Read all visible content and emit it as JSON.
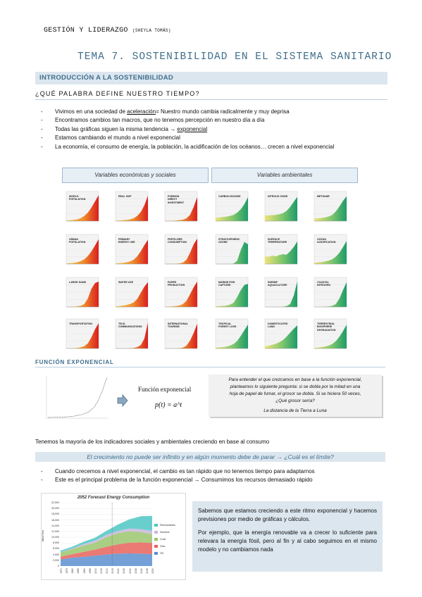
{
  "header": {
    "main": "GESTIÓN Y LIDERAZGO",
    "author": "(SHEYLA TOMÁS)"
  },
  "title": "TEMA 7. SOSTENIBILIDAD EN EL SISTEMA SANITARIO",
  "section_intro": "INTRODUCCIÓN A LA SOSTENIBILIDAD",
  "question": "¿QUÉ PALABRA DEFINE NUESTRO TIEMPO?",
  "bullets1": [
    {
      "pre": "Vivimos en una sociedad de ",
      "u": "aceleración",
      "post": "= Nuestro mundo cambia radicalmente y muy deprisa"
    },
    {
      "pre": "Encontramos cambios tan macros, que no tenemos percepción en nuestro día a día",
      "u": "",
      "post": ""
    },
    {
      "pre": "Todas las gráficas siguen la misma tendencia → ",
      "u": "exponencial",
      "post": ""
    },
    {
      "pre": "Estamos cambiando el mundo a nivel exponencial",
      "u": "",
      "post": ""
    },
    {
      "pre": "La economía, el consumo de energía, la población, la acidificación de los océanos… crecen a nivel exponencial",
      "u": "",
      "post": ""
    }
  ],
  "var_boxes": {
    "left": "Variables económicas y sociales",
    "right": "Variables ambientales"
  },
  "charts_economic": [
    {
      "label": "WORLD\nPOPULATION",
      "curve": [
        0.02,
        0.03,
        0.04,
        0.06,
        0.1,
        0.18,
        0.3,
        0.48,
        0.7,
        0.92
      ]
    },
    {
      "label": "REAL GDP",
      "curve": [
        0.01,
        0.02,
        0.03,
        0.04,
        0.06,
        0.1,
        0.18,
        0.32,
        0.56,
        0.9
      ]
    },
    {
      "label": "FOREIGN\nDIRECT\nINVESTMENT",
      "curve": [
        0.01,
        0.01,
        0.01,
        0.02,
        0.03,
        0.05,
        0.1,
        0.22,
        0.5,
        0.85
      ]
    },
    {
      "label": "URBAN\nPOPULATION",
      "curve": [
        0.02,
        0.03,
        0.04,
        0.06,
        0.1,
        0.17,
        0.28,
        0.45,
        0.66,
        0.88
      ]
    },
    {
      "label": "PRIMARY\nENERGY USE",
      "curve": [
        0.02,
        0.03,
        0.04,
        0.06,
        0.09,
        0.15,
        0.27,
        0.45,
        0.67,
        0.86
      ]
    },
    {
      "label": "FERTILIZER\nCONSUMPTION",
      "curve": [
        0.0,
        0.0,
        0.01,
        0.01,
        0.02,
        0.05,
        0.15,
        0.4,
        0.7,
        0.9
      ]
    },
    {
      "label": "LARGE DAMS",
      "curve": [
        0.0,
        0.01,
        0.01,
        0.02,
        0.04,
        0.1,
        0.3,
        0.65,
        0.85,
        0.9
      ]
    },
    {
      "label": "WATER USE",
      "curve": [
        0.02,
        0.03,
        0.05,
        0.07,
        0.1,
        0.16,
        0.28,
        0.5,
        0.72,
        0.88
      ]
    },
    {
      "label": "PAPER\nPRODUCTION",
      "curve": [
        0.0,
        0.01,
        0.02,
        0.03,
        0.05,
        0.1,
        0.22,
        0.45,
        0.7,
        0.9
      ]
    },
    {
      "label": "TRANSPORTATION",
      "curve": [
        0.0,
        0.0,
        0.01,
        0.02,
        0.04,
        0.08,
        0.18,
        0.4,
        0.68,
        0.9
      ]
    },
    {
      "label": "TELE-\nCOMMUNICATIONS",
      "curve": [
        0.0,
        0.0,
        0.0,
        0.0,
        0.01,
        0.02,
        0.05,
        0.12,
        0.35,
        0.92
      ]
    },
    {
      "label": "INTERNATIONAL\nTOURISM",
      "curve": [
        0.0,
        0.0,
        0.0,
        0.0,
        0.01,
        0.03,
        0.1,
        0.28,
        0.55,
        0.88
      ]
    }
  ],
  "charts_environmental": [
    {
      "label": "CARBON DIOXIDE",
      "curve": [
        0.12,
        0.13,
        0.14,
        0.16,
        0.18,
        0.22,
        0.3,
        0.42,
        0.6,
        0.85
      ]
    },
    {
      "label": "NITROUS OXIDE",
      "curve": [
        0.2,
        0.2,
        0.21,
        0.22,
        0.24,
        0.28,
        0.36,
        0.5,
        0.68,
        0.86
      ]
    },
    {
      "label": "METHANE",
      "curve": [
        0.1,
        0.1,
        0.11,
        0.13,
        0.16,
        0.22,
        0.34,
        0.52,
        0.72,
        0.88
      ]
    },
    {
      "label": "STRATOSPHERIC\nOZONE",
      "curve": [
        0.0,
        0.0,
        0.0,
        0.0,
        0.0,
        0.02,
        0.12,
        0.5,
        0.78,
        0.7
      ]
    },
    {
      "label": "SURFACE\nTEMPERATURE",
      "curve": [
        0.28,
        0.25,
        0.3,
        0.27,
        0.32,
        0.35,
        0.33,
        0.45,
        0.6,
        0.8
      ]
    },
    {
      "label": "OCEAN\nACIDIFICATION",
      "curve": [
        0.05,
        0.06,
        0.07,
        0.09,
        0.12,
        0.17,
        0.26,
        0.4,
        0.6,
        0.82
      ]
    },
    {
      "label": "MARINE FISH\nCAPTURE",
      "curve": [
        0.02,
        0.03,
        0.04,
        0.05,
        0.08,
        0.15,
        0.35,
        0.6,
        0.78,
        0.82
      ]
    },
    {
      "label": "SHRIMP\nAQUACULTURE",
      "curve": [
        0.0,
        0.0,
        0.0,
        0.0,
        0.0,
        0.01,
        0.03,
        0.1,
        0.4,
        0.9
      ]
    },
    {
      "label": "COASTAL\nNITROGEN",
      "curve": [
        0.0,
        0.0,
        0.0,
        0.01,
        0.02,
        0.04,
        0.1,
        0.3,
        0.6,
        0.88
      ]
    },
    {
      "label": "TROPICAL\nFOREST LOSS",
      "curve": [
        0.03,
        0.04,
        0.05,
        0.07,
        0.1,
        0.16,
        0.27,
        0.45,
        0.65,
        0.85
      ]
    },
    {
      "label": "DOMESTICATED\nLAND",
      "curve": [
        0.08,
        0.1,
        0.13,
        0.17,
        0.22,
        0.3,
        0.42,
        0.56,
        0.7,
        0.82
      ]
    },
    {
      "label": "TERRESTRIAL\nBIOSPHERE\nDEGRADATION",
      "curve": [
        0.02,
        0.03,
        0.05,
        0.07,
        0.1,
        0.16,
        0.26,
        0.42,
        0.62,
        0.84
      ]
    }
  ],
  "section_exp": "FUNCIÓN EXPONENCIAL",
  "exp_formula": {
    "label": "Función exponencial",
    "expr": "p(t) = a^t"
  },
  "exp_box": {
    "lines": [
      "Para entender el que crezcamos en base a la función exponencial,",
      "planteamos lo siguiente pregunta: si se dobla por la mitad en una",
      "hoja de papel de fumar, el grosor se dobla. Si se hiciera 50 veces,",
      "¿Qué grosor sería?"
    ],
    "answer": "La distancia de la Tierra a Luna"
  },
  "statement": "Tenemos la mayoría de los indicadores sociales y ambientales creciendo en base al consumo",
  "limit_band": "El crecimiento no puede ser infinito y en algún momento debe de parar → ¿Cuál es el límite?",
  "bullets2": [
    "Cuando crecemos a nivel exponencial, el cambio es tan rápido que no tenemos tiempo para adaptarnos",
    "Este es el principal problema de la función exponencial → Consumimos los recursos demasiado rápido"
  ],
  "energy_chart": {
    "title": "2052 Forecast Energy Consumption",
    "ylabel": "Mtoe/Year",
    "yticks": [
      "22,000",
      "20,000",
      "18,000",
      "16,000",
      "14,000",
      "12,000",
      "10,000",
      "8,000",
      "6,000",
      "4,000",
      "2,000",
      "0"
    ],
    "xticks": [
      "1970",
      "1975",
      "1980",
      "1985",
      "1990",
      "1995",
      "2000",
      "2005",
      "2010",
      "2015",
      "2020",
      "2025",
      "2030",
      "2035",
      "2040",
      "2045",
      "2050"
    ],
    "legend": [
      "Renewables",
      "Nuclear",
      "Coal",
      "Gas",
      "Oil"
    ],
    "colors": {
      "renewables": "#4fc7c4",
      "nuclear": "#c9b6de",
      "coal": "#9bc66d",
      "gas": "#e8625c",
      "oil": "#5b8fd0"
    }
  },
  "chart_data": {
    "type": "area",
    "title": "2052 Forecast Energy Consumption",
    "ylabel": "Mtoe/Year",
    "ylim": [
      0,
      22000
    ],
    "x": [
      1970,
      1980,
      1990,
      2000,
      2010,
      2020,
      2030,
      2040,
      2050
    ],
    "series": [
      {
        "name": "Oil",
        "values": [
          2300,
          2900,
          3200,
          3600,
          4000,
          4300,
          4400,
          4300,
          4100
        ]
      },
      {
        "name": "Gas",
        "values": [
          900,
          1200,
          1700,
          2100,
          2700,
          3200,
          3700,
          3900,
          3900
        ]
      },
      {
        "name": "Coal",
        "values": [
          1500,
          1800,
          2200,
          2400,
          3400,
          3900,
          4000,
          3600,
          3100
        ]
      },
      {
        "name": "Nuclear",
        "values": [
          100,
          200,
          500,
          700,
          700,
          800,
          900,
          1000,
          1100
        ]
      },
      {
        "name": "Renewables",
        "values": [
          500,
          600,
          800,
          1000,
          1400,
          2200,
          3200,
          4500,
          5200
        ]
      }
    ]
  },
  "blue_box": {
    "p1": "Sabemos que estamos creciendo a este ritmo exponencial y hacemos previsiones por medio de gráficas y cálculos.",
    "p2": "Por ejemplo, que la energía renovable va a crecer lo suficiente para relevara la energía fósil, pero al fin y al cabo seguimos en el mismo modelo y no cambiamos nada"
  }
}
